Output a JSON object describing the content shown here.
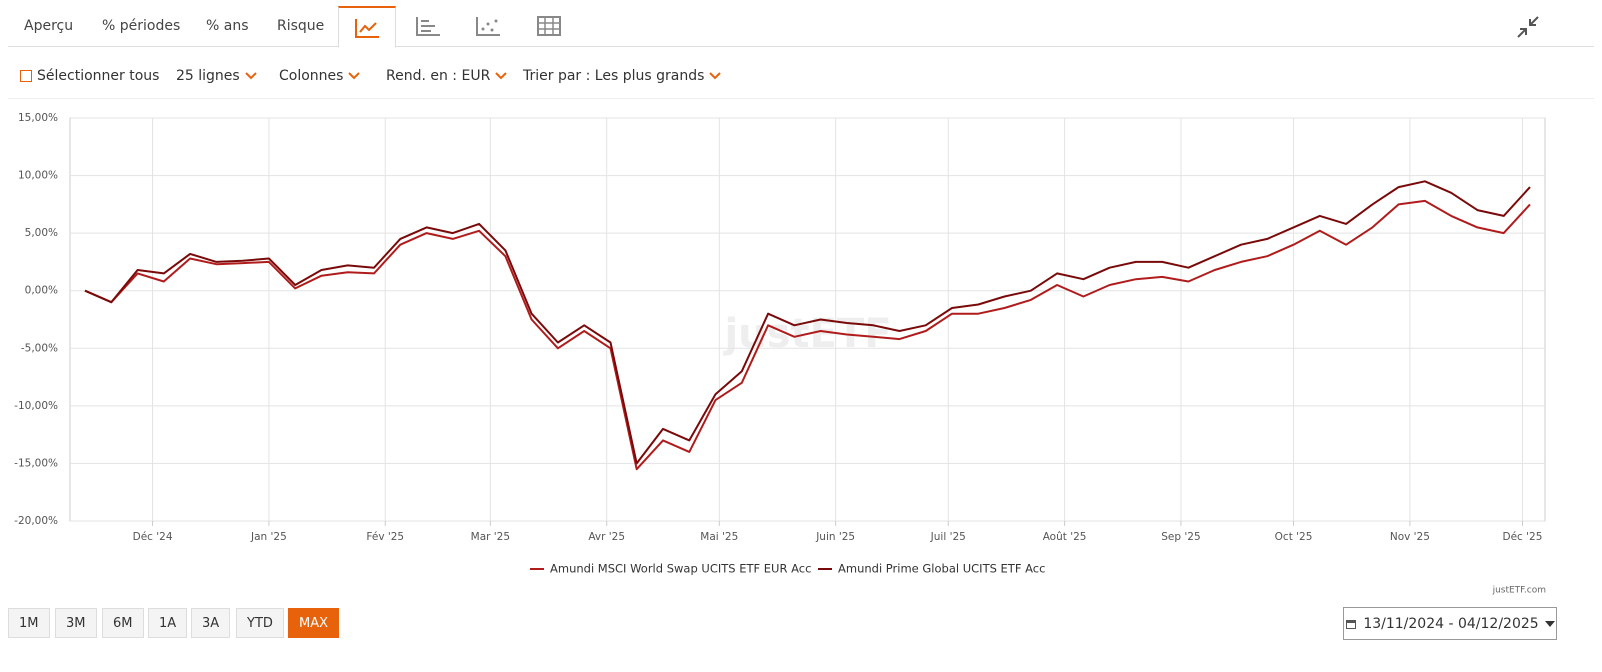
{
  "tabs": [
    "Aperçu",
    "% périodes",
    "% ans",
    "Risque"
  ],
  "toolbar": {
    "select_all": "Sélectionner tous",
    "rows": "25 lignes",
    "columns": "Colonnes",
    "currency": "Rend. en : EUR",
    "sort": "Trier par : Les plus grands"
  },
  "periods": [
    "1M",
    "3M",
    "6M",
    "1A",
    "3A",
    "YTD",
    "MAX"
  ],
  "active_period": "MAX",
  "date_range": "13/11/2024 - 04/12/2025",
  "credits": "justETF.com",
  "watermark": "justETF",
  "chart_data": {
    "type": "line",
    "x": [
      "2024-11-13",
      "2024-11-20",
      "2024-11-27",
      "2024-12-04",
      "2024-12-11",
      "2024-12-18",
      "2024-12-25",
      "2025-01-01",
      "2025-01-08",
      "2025-01-15",
      "2025-01-22",
      "2025-01-29",
      "2025-02-05",
      "2025-02-12",
      "2025-02-19",
      "2025-02-26",
      "2025-03-05",
      "2025-03-12",
      "2025-03-19",
      "2025-03-26",
      "2025-04-02",
      "2025-04-09",
      "2025-04-16",
      "2025-04-23",
      "2025-04-30",
      "2025-05-07",
      "2025-05-14",
      "2025-05-21",
      "2025-05-28",
      "2025-06-04",
      "2025-06-11",
      "2025-06-18",
      "2025-06-25",
      "2025-07-02",
      "2025-07-09",
      "2025-07-16",
      "2025-07-23",
      "2025-07-30",
      "2025-08-06",
      "2025-08-13",
      "2025-08-20",
      "2025-08-27",
      "2025-09-03",
      "2025-09-10",
      "2025-09-17",
      "2025-09-24",
      "2025-10-01",
      "2025-10-08",
      "2025-10-15",
      "2025-10-22",
      "2025-10-29",
      "2025-11-05",
      "2025-11-12",
      "2025-11-19",
      "2025-11-26",
      "2025-12-03"
    ],
    "series": [
      {
        "name": "Amundi MSCI World Swap UCITS ETF EUR Acc",
        "color": "#b01c1c",
        "values": [
          0,
          -1,
          1.5,
          0.8,
          2.8,
          2.3,
          2.4,
          2.5,
          0.2,
          1.3,
          1.6,
          1.5,
          4,
          5,
          4.5,
          5.2,
          3,
          -2.5,
          -5,
          -3.5,
          -5,
          -15.5,
          -13,
          -14,
          -9.5,
          -8,
          -3,
          -4,
          -3.5,
          -3.8,
          -4,
          -4.2,
          -3.5,
          -2,
          -2,
          -1.5,
          -0.8,
          0.5,
          -0.5,
          0.5,
          1,
          1.2,
          0.8,
          1.8,
          2.5,
          3,
          4,
          5.2,
          4,
          5.5,
          7.5,
          7.8,
          6.5,
          5.5,
          5,
          7.5
        ]
      },
      {
        "name": "Amundi Prime Global UCITS ETF Acc",
        "color": "#7a0a0a",
        "values": [
          0,
          -1,
          1.8,
          1.5,
          3.2,
          2.5,
          2.6,
          2.8,
          0.5,
          1.8,
          2.2,
          2,
          4.5,
          5.5,
          5,
          5.8,
          3.5,
          -2,
          -4.5,
          -3,
          -4.5,
          -15,
          -12,
          -13,
          -9,
          -7,
          -2,
          -3,
          -2.5,
          -2.8,
          -3,
          -3.5,
          -3,
          -1.5,
          -1.2,
          -0.5,
          0,
          1.5,
          1,
          2,
          2.5,
          2.5,
          2,
          3,
          4,
          4.5,
          5.5,
          6.5,
          5.8,
          7.5,
          9,
          9.5,
          8.5,
          7,
          6.5,
          9
        ]
      }
    ],
    "xlim": [
      "2024-11-09",
      "2025-12-07"
    ],
    "xticks": [
      {
        "value": "2024-12-01",
        "label": "Déc '24"
      },
      {
        "value": "2025-01-01",
        "label": "Jan '25"
      },
      {
        "value": "2025-02-01",
        "label": "Fév '25"
      },
      {
        "value": "2025-03-01",
        "label": "Mar '25"
      },
      {
        "value": "2025-04-01",
        "label": "Avr '25"
      },
      {
        "value": "2025-05-01",
        "label": "Mai '25"
      },
      {
        "value": "2025-06-01",
        "label": "Juin '25"
      },
      {
        "value": "2025-07-01",
        "label": "Juil '25"
      },
      {
        "value": "2025-08-01",
        "label": "Août '25"
      },
      {
        "value": "2025-09-01",
        "label": "Sep '25"
      },
      {
        "value": "2025-10-01",
        "label": "Oct '25"
      },
      {
        "value": "2025-11-01",
        "label": "Nov '25"
      },
      {
        "value": "2025-12-01",
        "label": "Déc '25"
      }
    ],
    "ylim": [
      -20,
      15
    ],
    "yticks": [
      {
        "value": 15,
        "label": "15,00%"
      },
      {
        "value": 10,
        "label": "10,00%"
      },
      {
        "value": 5,
        "label": "5,00%"
      },
      {
        "value": 0,
        "label": "0,00%"
      },
      {
        "value": -5,
        "label": "-5,00%"
      },
      {
        "value": -10,
        "label": "-10,00%"
      },
      {
        "value": -15,
        "label": "-15,00%"
      },
      {
        "value": -20,
        "label": "-20,00%"
      }
    ],
    "grid": true,
    "legend": "bottom"
  }
}
